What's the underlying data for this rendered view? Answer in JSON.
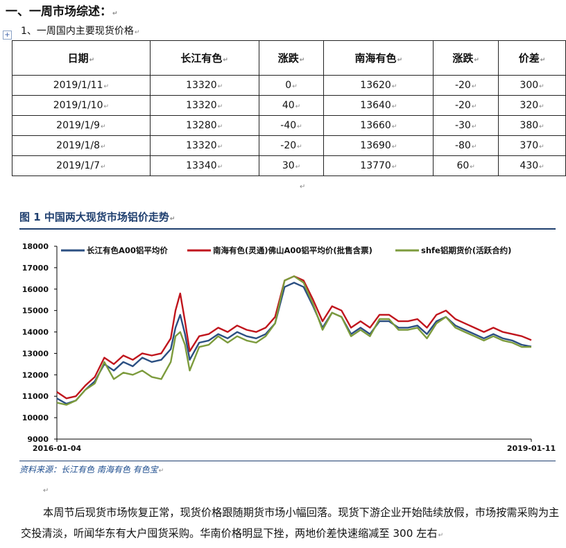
{
  "section_heading": "一、一周市场综述：",
  "subheading": "1、一周国内主要现货价格",
  "table": {
    "headers": [
      "日期",
      "长江有色",
      "涨跌",
      "南海有色",
      "涨跌",
      "价差"
    ],
    "rows": [
      [
        "2019/1/11",
        "13320",
        "0",
        "13620",
        "-20",
        "300"
      ],
      [
        "2019/1/10",
        "13320",
        "40",
        "13640",
        "-20",
        "320"
      ],
      [
        "2019/1/9",
        "13280",
        "-40",
        "13660",
        "-30",
        "380"
      ],
      [
        "2019/1/8",
        "13320",
        "-20",
        "13690",
        "-80",
        "370"
      ],
      [
        "2019/1/7",
        "13340",
        "30",
        "13770",
        "60",
        "430"
      ]
    ]
  },
  "figure_title": "图 1    中国两大现货市场铝价走势",
  "chart_data": {
    "type": "line",
    "x_start": "2016-01-04",
    "x_end": "2019-01-11",
    "x_tick_labels": [
      "2016-01-04",
      "2019-01-11"
    ],
    "ylim": [
      9000,
      18000
    ],
    "y_ticks": [
      9000,
      10000,
      11000,
      12000,
      13000,
      14000,
      15000,
      16000,
      17000,
      18000
    ],
    "colors": [
      "#2b4f82",
      "#c0151d",
      "#7c9b3c"
    ],
    "series": [
      {
        "name": "长江有色A00铝平均价",
        "x": [
          0,
          0.02,
          0.04,
          0.06,
          0.08,
          0.1,
          0.12,
          0.14,
          0.16,
          0.18,
          0.2,
          0.22,
          0.24,
          0.25,
          0.26,
          0.27,
          0.28,
          0.3,
          0.32,
          0.34,
          0.36,
          0.38,
          0.4,
          0.42,
          0.44,
          0.46,
          0.48,
          0.5,
          0.52,
          0.54,
          0.56,
          0.58,
          0.6,
          0.62,
          0.64,
          0.66,
          0.68,
          0.7,
          0.72,
          0.74,
          0.76,
          0.78,
          0.8,
          0.82,
          0.84,
          0.86,
          0.88,
          0.9,
          0.92,
          0.94,
          0.96,
          0.98,
          1.0
        ],
        "values": [
          10900,
          10650,
          10800,
          11300,
          11700,
          12500,
          12200,
          12600,
          12400,
          12800,
          12600,
          12700,
          13200,
          14200,
          14800,
          13900,
          12700,
          13500,
          13600,
          13900,
          13700,
          14000,
          13800,
          13700,
          13900,
          14400,
          16100,
          16300,
          16100,
          15200,
          14200,
          14900,
          14700,
          13900,
          14200,
          13900,
          14500,
          14500,
          14200,
          14200,
          14300,
          13900,
          14500,
          14700,
          14300,
          14100,
          13900,
          13700,
          13900,
          13700,
          13600,
          13400,
          13320
        ]
      },
      {
        "name": "南海有色(灵通)佛山A00铝平均价(批售含票)",
        "x": [
          0,
          0.02,
          0.04,
          0.06,
          0.08,
          0.1,
          0.12,
          0.14,
          0.16,
          0.18,
          0.2,
          0.22,
          0.24,
          0.25,
          0.26,
          0.27,
          0.28,
          0.3,
          0.32,
          0.34,
          0.36,
          0.38,
          0.4,
          0.42,
          0.44,
          0.46,
          0.48,
          0.5,
          0.52,
          0.54,
          0.56,
          0.58,
          0.6,
          0.62,
          0.64,
          0.66,
          0.68,
          0.7,
          0.72,
          0.74,
          0.76,
          0.78,
          0.8,
          0.82,
          0.84,
          0.86,
          0.88,
          0.9,
          0.92,
          0.94,
          0.96,
          0.98,
          1.0
        ],
        "values": [
          11200,
          10900,
          11000,
          11500,
          11900,
          12800,
          12500,
          12900,
          12700,
          13000,
          12900,
          13000,
          13700,
          15000,
          15800,
          14500,
          13100,
          13800,
          13900,
          14200,
          14000,
          14300,
          14100,
          14000,
          14200,
          14700,
          16400,
          16600,
          16400,
          15500,
          14500,
          15200,
          15000,
          14200,
          14500,
          14200,
          14800,
          14800,
          14500,
          14500,
          14600,
          14200,
          14800,
          15000,
          14600,
          14400,
          14200,
          14000,
          14200,
          14000,
          13900,
          13800,
          13620
        ]
      },
      {
        "name": "shfe铝期货价(活跃合约)",
        "x": [
          0,
          0.02,
          0.04,
          0.06,
          0.08,
          0.1,
          0.12,
          0.14,
          0.16,
          0.18,
          0.2,
          0.22,
          0.24,
          0.25,
          0.26,
          0.27,
          0.28,
          0.3,
          0.32,
          0.34,
          0.36,
          0.38,
          0.4,
          0.42,
          0.44,
          0.46,
          0.48,
          0.5,
          0.52,
          0.54,
          0.56,
          0.58,
          0.6,
          0.62,
          0.64,
          0.66,
          0.68,
          0.7,
          0.72,
          0.74,
          0.76,
          0.78,
          0.8,
          0.82,
          0.84,
          0.86,
          0.88,
          0.9,
          0.92,
          0.94,
          0.96,
          0.98,
          1.0
        ],
        "values": [
          10700,
          10600,
          10800,
          11300,
          11600,
          12600,
          11800,
          12100,
          12000,
          12200,
          11900,
          11800,
          12600,
          13800,
          14000,
          13400,
          12200,
          13300,
          13400,
          13800,
          13500,
          13800,
          13600,
          13500,
          13800,
          14400,
          16400,
          16600,
          16300,
          15300,
          14100,
          14900,
          14700,
          13800,
          14100,
          13800,
          14600,
          14600,
          14100,
          14100,
          14200,
          13700,
          14400,
          14700,
          14200,
          14000,
          13800,
          13600,
          13800,
          13600,
          13500,
          13300,
          13300
        ]
      }
    ]
  },
  "source_note": "资料来源：长江有色    南海有色    有色宝",
  "paragraph": "本周节后现货市场恢复正常，现货价格跟随期货市场小幅回落。现货下游企业开始陆续放假，市场按需采购为主交投清淡，听闻华东有大户囤货采购。华南价格明显下挫，两地价差快速缩减至 300 左右"
}
